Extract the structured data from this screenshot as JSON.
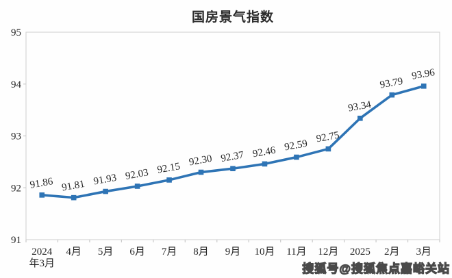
{
  "watermark": "搜狐号@搜狐焦点嘉峪关站",
  "colors": {
    "line": "#2E74B5",
    "frame": "#D6D6D6",
    "tick": "#C9C9C9",
    "text": "#262626",
    "title": "#2B2B2B"
  },
  "chart_data": {
    "type": "line",
    "title": "国房景气指数",
    "categories": [
      [
        "2024",
        "年3月"
      ],
      [
        "4月"
      ],
      [
        "5月"
      ],
      [
        "6月"
      ],
      [
        "7月"
      ],
      [
        "8月"
      ],
      [
        "9月"
      ],
      [
        "10月"
      ],
      [
        "11月"
      ],
      [
        "12月"
      ],
      [
        "2025"
      ],
      [
        "2月"
      ],
      [
        "3月"
      ]
    ],
    "values": [
      91.86,
      91.81,
      91.93,
      92.03,
      92.15,
      92.3,
      92.37,
      92.46,
      92.59,
      92.75,
      93.34,
      93.79,
      93.96
    ],
    "data_label_decimals": 2,
    "data_labels_rotation_deg": -10,
    "ylim": [
      91,
      95
    ],
    "yticks": [
      91,
      92,
      93,
      94,
      95
    ],
    "line_color": "#2E74B5",
    "marker": "square",
    "grid": false,
    "legend": "none",
    "xlabel": "",
    "ylabel": ""
  }
}
